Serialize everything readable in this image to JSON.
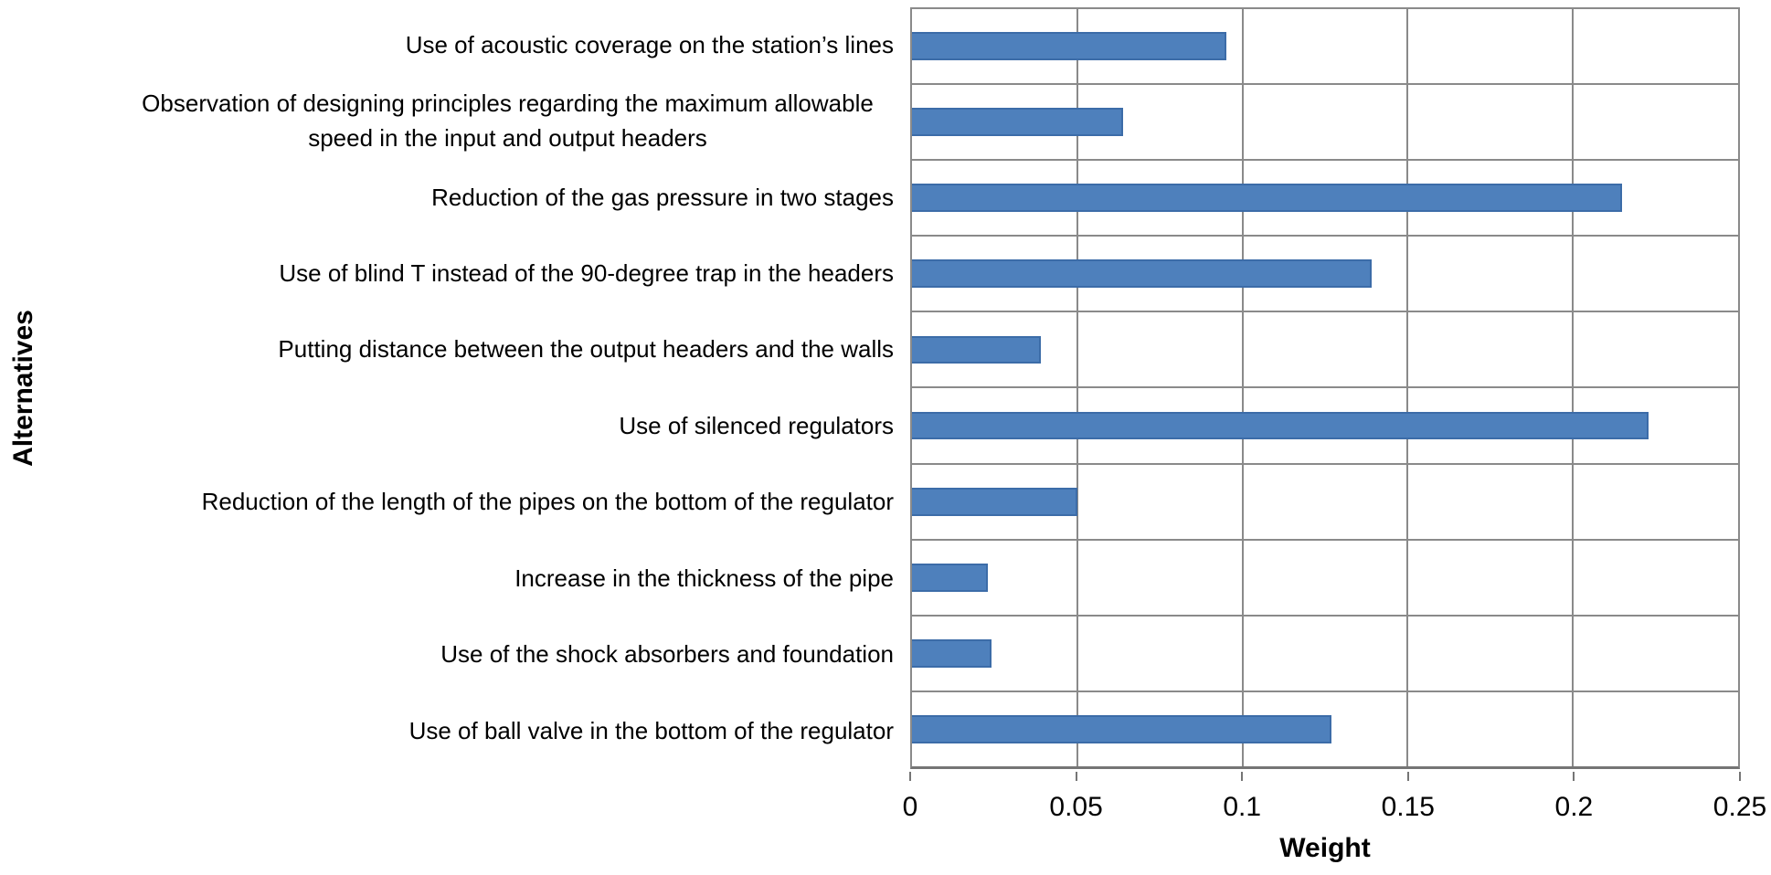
{
  "chart_data": {
    "type": "bar",
    "orientation": "horizontal",
    "title": "",
    "xlabel": "Weight",
    "ylabel": "Alternatives",
    "categories": [
      "Use of acoustic coverage on the station’s lines",
      "Observation of designing principles regarding the maximum allowable speed in the input and output headers",
      "Reduction of the gas pressure in two stages",
      "Use of blind T instead of the 90-degree trap in the headers",
      "Putting distance between the output headers and the walls",
      "Use of silenced regulators",
      "Reduction of the length of the pipes on the bottom of the regulator",
      "Increase in the thickness of the pipe",
      "Use of the shock absorbers and foundation",
      "Use of ball valve in the bottom of the regulator"
    ],
    "values": [
      0.095,
      0.064,
      0.215,
      0.139,
      0.039,
      0.223,
      0.05,
      0.023,
      0.024,
      0.127
    ],
    "xlim": [
      0,
      0.25
    ],
    "xticks": [
      0,
      0.05,
      0.1,
      0.15,
      0.2,
      0.25
    ],
    "xtick_labels": [
      "0",
      "0.05",
      "0.1",
      "0.15",
      "0.2",
      "0.25"
    ],
    "grid": true,
    "legend": "none",
    "bar_color": "#4e80bc",
    "bar_border_color": "#3c6ca8",
    "gridline_color": "#8a8a8a",
    "axis_color": "#757575"
  }
}
